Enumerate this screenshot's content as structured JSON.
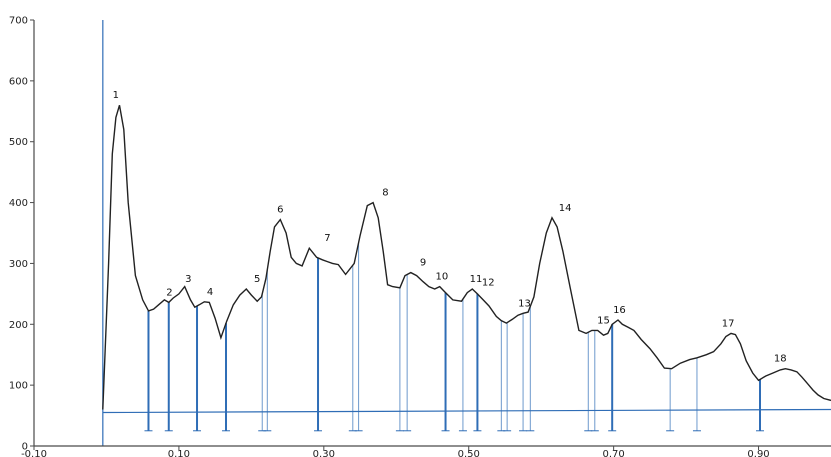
{
  "chart_data": {
    "type": "line",
    "title": "",
    "xlabel": "",
    "ylabel": "",
    "xlim": [
      -0.1,
      1.0
    ],
    "ylim": [
      0,
      700
    ],
    "x_ticks": [
      {
        "v": -0.1,
        "label": "-0.10"
      },
      {
        "v": 0.1,
        "label": "0.10"
      },
      {
        "v": 0.3,
        "label": "0.30"
      },
      {
        "v": 0.5,
        "label": "0.50"
      },
      {
        "v": 0.7,
        "label": "0.70"
      },
      {
        "v": 0.9,
        "label": "0.90"
      }
    ],
    "y_ticks": [
      {
        "v": 0,
        "label": "0"
      },
      {
        "v": 100,
        "label": "100"
      },
      {
        "v": 200,
        "label": "200"
      },
      {
        "v": 300,
        "label": "300"
      },
      {
        "v": 400,
        "label": "400"
      },
      {
        "v": 500,
        "label": "500"
      },
      {
        "v": 600,
        "label": "600"
      },
      {
        "v": 700,
        "label": "700"
      }
    ],
    "grid": false,
    "colors": {
      "curve": "#222222",
      "marks": "#2f6db6",
      "axis": "#4a4a4a"
    },
    "trace": {
      "x": [
        -0.005,
        0.003,
        0.008,
        0.013,
        0.018,
        0.024,
        0.03,
        0.04,
        0.05,
        0.058,
        0.065,
        0.072,
        0.08,
        0.086,
        0.092,
        0.1,
        0.108,
        0.116,
        0.122,
        0.128,
        0.135,
        0.142,
        0.15,
        0.158,
        0.166,
        0.175,
        0.184,
        0.193,
        0.2,
        0.208,
        0.214,
        0.22,
        0.226,
        0.232,
        0.24,
        0.248,
        0.255,
        0.262,
        0.27,
        0.28,
        0.29,
        0.298,
        0.305,
        0.312,
        0.32,
        0.33,
        0.342,
        0.35,
        0.36,
        0.368,
        0.375,
        0.382,
        0.388,
        0.395,
        0.405,
        0.412,
        0.42,
        0.428,
        0.437,
        0.445,
        0.453,
        0.46,
        0.468,
        0.478,
        0.49,
        0.498,
        0.505,
        0.512,
        0.52,
        0.528,
        0.538,
        0.545,
        0.552,
        0.56,
        0.568,
        0.575,
        0.582,
        0.59,
        0.598,
        0.607,
        0.615,
        0.622,
        0.63,
        0.64,
        0.652,
        0.662,
        0.67,
        0.678,
        0.686,
        0.692,
        0.698,
        0.706,
        0.712,
        0.72,
        0.728,
        0.738,
        0.75,
        0.76,
        0.77,
        0.78,
        0.792,
        0.805,
        0.815,
        0.828,
        0.838,
        0.848,
        0.855,
        0.862,
        0.868,
        0.875,
        0.883,
        0.892,
        0.9,
        0.91,
        0.92,
        0.93,
        0.937,
        0.945,
        0.953,
        0.96,
        0.968,
        0.975,
        0.982,
        0.99,
        1.0
      ],
      "y": [
        60,
        300,
        480,
        540,
        560,
        520,
        400,
        280,
        240,
        222,
        225,
        232,
        240,
        236,
        243,
        250,
        262,
        240,
        228,
        232,
        237,
        236,
        210,
        178,
        205,
        232,
        248,
        258,
        248,
        238,
        245,
        275,
        320,
        360,
        372,
        350,
        310,
        300,
        296,
        325,
        310,
        306,
        303,
        300,
        298,
        282,
        300,
        345,
        395,
        400,
        375,
        320,
        265,
        262,
        260,
        280,
        285,
        280,
        270,
        262,
        258,
        262,
        252,
        240,
        238,
        252,
        258,
        250,
        240,
        230,
        213,
        206,
        202,
        208,
        215,
        218,
        220,
        245,
        300,
        350,
        375,
        360,
        320,
        260,
        190,
        185,
        190,
        190,
        182,
        185,
        200,
        207,
        200,
        195,
        190,
        175,
        160,
        145,
        128,
        127,
        136,
        142,
        145,
        150,
        155,
        168,
        180,
        185,
        183,
        168,
        140,
        120,
        108,
        115,
        120,
        125,
        127,
        125,
        122,
        113,
        102,
        92,
        84,
        78,
        75
      ]
    },
    "peak_labels": [
      {
        "label": "1",
        "x": 0.013,
        "y": 560
      },
      {
        "label": "2",
        "x": 0.087,
        "y": 236
      },
      {
        "label": "3",
        "x": 0.113,
        "y": 258
      },
      {
        "label": "4",
        "x": 0.143,
        "y": 237
      },
      {
        "label": "5",
        "x": 0.208,
        "y": 258
      },
      {
        "label": "6",
        "x": 0.24,
        "y": 372
      },
      {
        "label": "7",
        "x": 0.305,
        "y": 325
      },
      {
        "label": "8",
        "x": 0.385,
        "y": 400
      },
      {
        "label": "9",
        "x": 0.437,
        "y": 285
      },
      {
        "label": "10",
        "x": 0.463,
        "y": 262
      },
      {
        "label": "11",
        "x": 0.51,
        "y": 258
      },
      {
        "label": "12",
        "x": 0.527,
        "y": 252
      },
      {
        "label": "13",
        "x": 0.577,
        "y": 218
      },
      {
        "label": "14",
        "x": 0.633,
        "y": 375
      },
      {
        "label": "15",
        "x": 0.686,
        "y": 190
      },
      {
        "label": "16",
        "x": 0.708,
        "y": 207
      },
      {
        "label": "17",
        "x": 0.858,
        "y": 185
      },
      {
        "label": "18",
        "x": 0.93,
        "y": 127
      }
    ],
    "baseline": {
      "x": [
        -0.005,
        1.0
      ],
      "y": [
        55,
        60
      ]
    },
    "boundary_x": [
      0.058,
      0.086,
      0.125,
      0.165,
      0.215,
      0.222,
      0.292,
      0.34,
      0.348,
      0.405,
      0.415,
      0.468,
      0.492,
      0.512,
      0.545,
      0.553,
      0.575,
      0.585,
      0.665,
      0.674,
      0.698,
      0.778,
      0.815,
      0.902
    ],
    "dark_boundary_x": [
      0.058,
      0.086,
      0.125,
      0.165,
      0.292,
      0.468,
      0.512,
      0.698,
      0.902
    ]
  }
}
